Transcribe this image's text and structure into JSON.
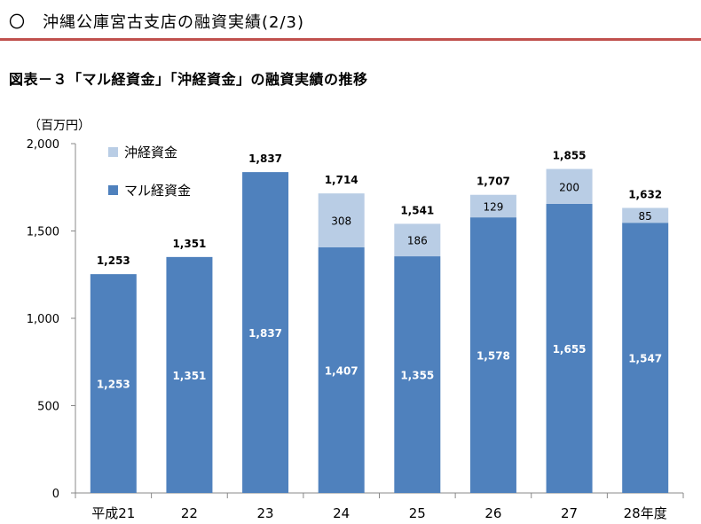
{
  "header": {
    "title": "〇　沖縄公庫宮古支店の融資実績(2/3)"
  },
  "figure": {
    "title": "図表－３「マル経資金」「沖経資金」の融資実績の推移"
  },
  "colors": {
    "rule": "#c0504d",
    "maru": "#4f81bd",
    "oki": "#b9cde5"
  },
  "chart_data": {
    "type": "bar",
    "stacked": true,
    "unit": "（百万円）",
    "categories": [
      "平成21",
      "22",
      "23",
      "24",
      "25",
      "26",
      "27",
      "28年度"
    ],
    "series": [
      {
        "name": "マル経資金",
        "values": [
          1253,
          1351,
          1837,
          1407,
          1355,
          1578,
          1655,
          1547
        ]
      },
      {
        "name": "沖経資金",
        "values": [
          null,
          null,
          null,
          308,
          186,
          129,
          200,
          85
        ]
      }
    ],
    "totals": [
      "1,253",
      "1,351",
      "1,837",
      "1,714",
      "1,541",
      "1,707",
      "1,855",
      "1,632"
    ],
    "maru_labels": [
      "1,253",
      "1,351",
      "1,837",
      "1,407",
      "1,355",
      "1,578",
      "1,655",
      "1,547"
    ],
    "oki_labels": [
      "",
      "",
      "",
      "308",
      "186",
      "129",
      "200",
      "85"
    ],
    "yticks": [
      "0",
      "500",
      "1,000",
      "1,500",
      "2,000"
    ],
    "ylim": [
      0,
      2000
    ],
    "legend_position": "top-left",
    "grid": false
  }
}
